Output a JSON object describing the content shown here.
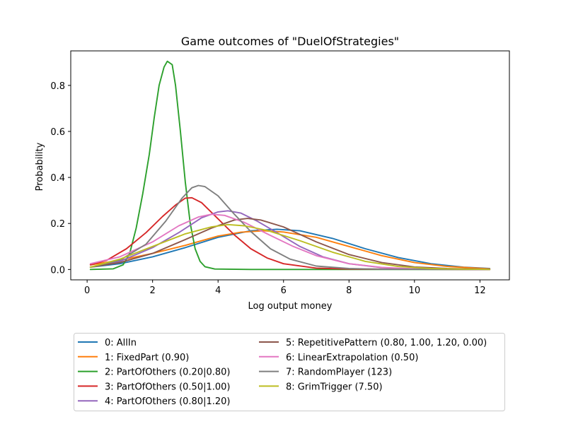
{
  "chart_data": {
    "type": "line",
    "title": "Game outcomes of \"DuelOfStrategies\"",
    "xlabel": "Log output money",
    "ylabel": "Probability",
    "xlim": [
      -0.5,
      12.9
    ],
    "ylim": [
      -0.045,
      0.95
    ],
    "xticks": [
      0,
      2,
      4,
      6,
      8,
      10,
      12
    ],
    "yticks": [
      0.0,
      0.2,
      0.4,
      0.6,
      0.8
    ],
    "xtick_labels": [
      "0",
      "2",
      "4",
      "6",
      "8",
      "10",
      "12"
    ],
    "ytick_labels": [
      "0.0",
      "0.2",
      "0.4",
      "0.6",
      "0.8"
    ],
    "grid": false,
    "legend_position": "below",
    "series": [
      {
        "name": "0: AllIn",
        "color": "#1f77b4",
        "points": [
          [
            0.1,
            0.01
          ],
          [
            1.0,
            0.025
          ],
          [
            2.0,
            0.055
          ],
          [
            3.0,
            0.095
          ],
          [
            4.0,
            0.14
          ],
          [
            5.0,
            0.168
          ],
          [
            5.8,
            0.175
          ],
          [
            6.5,
            0.168
          ],
          [
            7.5,
            0.135
          ],
          [
            8.5,
            0.09
          ],
          [
            9.5,
            0.052
          ],
          [
            10.5,
            0.025
          ],
          [
            11.5,
            0.01
          ],
          [
            12.3,
            0.004
          ]
        ]
      },
      {
        "name": "1: FixedPart (0.90)",
        "color": "#ff7f0e",
        "points": [
          [
            0.1,
            0.02
          ],
          [
            1.0,
            0.04
          ],
          [
            2.0,
            0.07
          ],
          [
            3.0,
            0.105
          ],
          [
            4.0,
            0.145
          ],
          [
            4.7,
            0.162
          ],
          [
            5.4,
            0.168
          ],
          [
            6.0,
            0.163
          ],
          [
            7.0,
            0.14
          ],
          [
            8.0,
            0.1
          ],
          [
            9.0,
            0.06
          ],
          [
            10.0,
            0.03
          ],
          [
            11.0,
            0.013
          ],
          [
            12.3,
            0.003
          ]
        ]
      },
      {
        "name": "2: PartOfOthers (0.20|0.80)",
        "color": "#2ca02c",
        "points": [
          [
            0.1,
            0.0
          ],
          [
            0.8,
            0.003
          ],
          [
            1.1,
            0.02
          ],
          [
            1.3,
            0.07
          ],
          [
            1.5,
            0.18
          ],
          [
            1.7,
            0.33
          ],
          [
            1.9,
            0.5
          ],
          [
            2.05,
            0.66
          ],
          [
            2.2,
            0.8
          ],
          [
            2.35,
            0.88
          ],
          [
            2.45,
            0.905
          ],
          [
            2.6,
            0.89
          ],
          [
            2.7,
            0.8
          ],
          [
            2.85,
            0.6
          ],
          [
            3.0,
            0.38
          ],
          [
            3.15,
            0.2
          ],
          [
            3.3,
            0.09
          ],
          [
            3.45,
            0.035
          ],
          [
            3.6,
            0.012
          ],
          [
            3.9,
            0.002
          ],
          [
            5.0,
            0.0
          ],
          [
            12.3,
            0.0
          ]
        ]
      },
      {
        "name": "3: PartOfOthers (0.50|1.00)",
        "color": "#d62728",
        "points": [
          [
            0.1,
            0.02
          ],
          [
            0.6,
            0.04
          ],
          [
            1.2,
            0.09
          ],
          [
            1.8,
            0.16
          ],
          [
            2.3,
            0.23
          ],
          [
            2.7,
            0.28
          ],
          [
            3.0,
            0.31
          ],
          [
            3.2,
            0.312
          ],
          [
            3.5,
            0.29
          ],
          [
            4.0,
            0.22
          ],
          [
            4.5,
            0.15
          ],
          [
            5.0,
            0.09
          ],
          [
            5.5,
            0.05
          ],
          [
            6.0,
            0.025
          ],
          [
            7.0,
            0.006
          ],
          [
            8.0,
            0.002
          ],
          [
            12.3,
            0.0
          ]
        ]
      },
      {
        "name": "4: PartOfOthers (0.80|1.20)",
        "color": "#9467bd",
        "points": [
          [
            0.1,
            0.01
          ],
          [
            1.0,
            0.035
          ],
          [
            2.0,
            0.095
          ],
          [
            2.8,
            0.16
          ],
          [
            3.5,
            0.225
          ],
          [
            4.0,
            0.25
          ],
          [
            4.3,
            0.255
          ],
          [
            4.7,
            0.245
          ],
          [
            5.2,
            0.21
          ],
          [
            5.8,
            0.16
          ],
          [
            6.5,
            0.1
          ],
          [
            7.2,
            0.055
          ],
          [
            8.0,
            0.025
          ],
          [
            9.0,
            0.008
          ],
          [
            10.0,
            0.002
          ],
          [
            12.3,
            0.0
          ]
        ]
      },
      {
        "name": "5: RepetitivePattern (0.80, 1.00, 1.20, 0.00)",
        "color": "#8c564b",
        "points": [
          [
            0.1,
            0.01
          ],
          [
            1.0,
            0.03
          ],
          [
            2.0,
            0.07
          ],
          [
            3.0,
            0.13
          ],
          [
            3.8,
            0.18
          ],
          [
            4.5,
            0.215
          ],
          [
            4.9,
            0.222
          ],
          [
            5.3,
            0.215
          ],
          [
            6.0,
            0.185
          ],
          [
            7.0,
            0.12
          ],
          [
            8.0,
            0.065
          ],
          [
            9.0,
            0.03
          ],
          [
            10.0,
            0.011
          ],
          [
            11.0,
            0.004
          ],
          [
            12.3,
            0.001
          ]
        ]
      },
      {
        "name": "6: LinearExtrapolation (0.50)",
        "color": "#e377c2",
        "points": [
          [
            0.1,
            0.025
          ],
          [
            1.0,
            0.055
          ],
          [
            2.0,
            0.12
          ],
          [
            2.8,
            0.19
          ],
          [
            3.4,
            0.228
          ],
          [
            3.8,
            0.24
          ],
          [
            4.2,
            0.235
          ],
          [
            4.8,
            0.205
          ],
          [
            5.5,
            0.155
          ],
          [
            6.3,
            0.1
          ],
          [
            7.0,
            0.06
          ],
          [
            8.0,
            0.025
          ],
          [
            9.0,
            0.009
          ],
          [
            10.0,
            0.003
          ],
          [
            12.3,
            0.0
          ]
        ]
      },
      {
        "name": "7: RandomPlayer (123)",
        "color": "#7f7f7f",
        "points": [
          [
            0.1,
            0.01
          ],
          [
            1.0,
            0.04
          ],
          [
            1.8,
            0.11
          ],
          [
            2.4,
            0.21
          ],
          [
            2.9,
            0.31
          ],
          [
            3.2,
            0.355
          ],
          [
            3.4,
            0.365
          ],
          [
            3.6,
            0.36
          ],
          [
            4.0,
            0.32
          ],
          [
            4.5,
            0.24
          ],
          [
            5.0,
            0.165
          ],
          [
            5.6,
            0.09
          ],
          [
            6.2,
            0.045
          ],
          [
            7.0,
            0.015
          ],
          [
            8.0,
            0.004
          ],
          [
            9.0,
            0.001
          ],
          [
            12.3,
            0.0
          ]
        ]
      },
      {
        "name": "8: GrimTrigger (7.50)",
        "color": "#bcbd22",
        "points": [
          [
            0.1,
            0.01
          ],
          [
            1.0,
            0.045
          ],
          [
            2.0,
            0.1
          ],
          [
            3.0,
            0.155
          ],
          [
            3.8,
            0.185
          ],
          [
            4.3,
            0.195
          ],
          [
            4.8,
            0.19
          ],
          [
            5.5,
            0.17
          ],
          [
            6.5,
            0.125
          ],
          [
            7.5,
            0.075
          ],
          [
            8.5,
            0.035
          ],
          [
            9.5,
            0.013
          ],
          [
            10.5,
            0.004
          ],
          [
            12.3,
            0.0
          ]
        ]
      }
    ]
  }
}
